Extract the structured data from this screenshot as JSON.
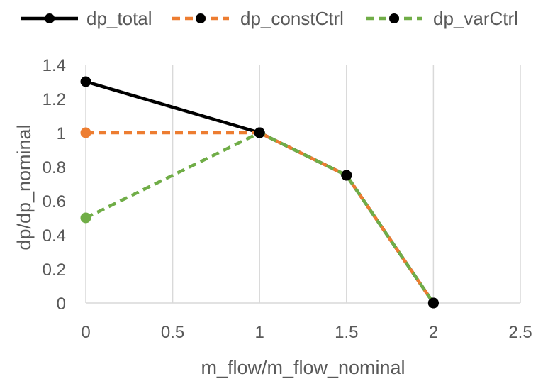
{
  "chart_data": {
    "type": "line",
    "title": "",
    "xlabel": "m_flow/m_flow_nominal",
    "ylabel": "dp/dp_nominal",
    "xlim": [
      0,
      2.5
    ],
    "ylim": [
      0,
      1.4
    ],
    "x_ticks": [
      "0",
      "0.5",
      "1",
      "1.5",
      "2",
      "2.5"
    ],
    "y_ticks": [
      "0",
      "0.2",
      "0.4",
      "0.6",
      "0.8",
      "1",
      "1.2",
      "1.4"
    ],
    "grid": "vertical",
    "legend_position": "top",
    "series": [
      {
        "name": "dp_total",
        "color": "#000000",
        "dash": "solid",
        "x": [
          0,
          1,
          1.5,
          2
        ],
        "y": [
          1.3,
          1,
          0.75,
          0
        ]
      },
      {
        "name": "dp_constCtrl",
        "color": "#ED7D31",
        "dash": "dashed",
        "x": [
          0,
          1,
          1.5,
          2
        ],
        "y": [
          1,
          1,
          0.75,
          0
        ]
      },
      {
        "name": "dp_varCtrl",
        "color": "#70AD47",
        "dash": "dashed",
        "x": [
          0,
          1,
          1.5,
          2
        ],
        "y": [
          0.5,
          1,
          0.75,
          0
        ]
      }
    ]
  }
}
